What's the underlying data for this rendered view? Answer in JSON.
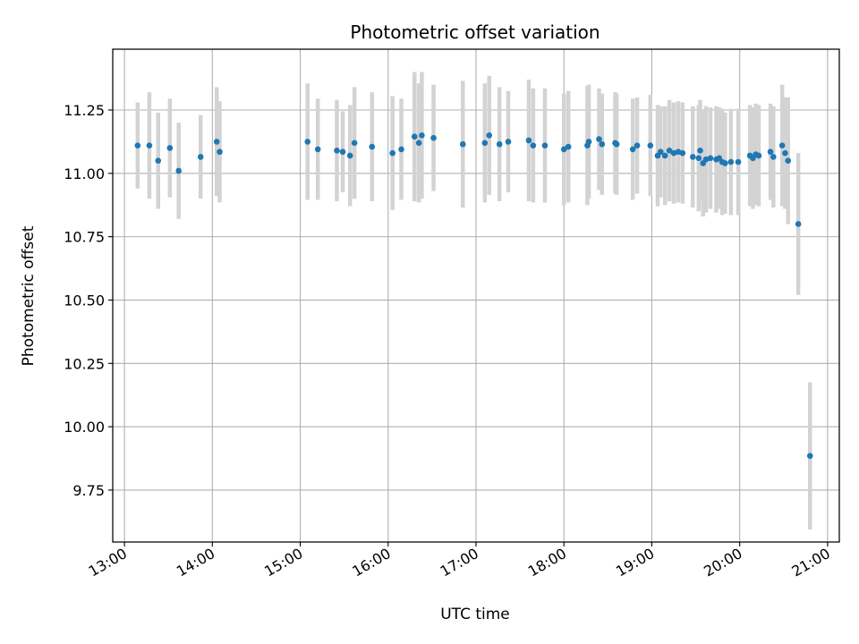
{
  "chart_data": {
    "type": "scatter",
    "title": "Photometric offset variation",
    "xlabel": "UTC time",
    "ylabel": "Photometric offset",
    "x_ticks": [
      "13:00",
      "14:00",
      "15:00",
      "16:00",
      "17:00",
      "18:00",
      "19:00",
      "20:00",
      "21:00"
    ],
    "y_ticks": [
      "9.75",
      "10.00",
      "10.25",
      "10.50",
      "10.75",
      "11.00",
      "11.25"
    ],
    "xlim": [
      "12:52",
      "21:08"
    ],
    "ylim": [
      9.545,
      11.49
    ],
    "grid": true,
    "colors": {
      "marker": "#1f77b4",
      "errorbar": "#d3d3d3",
      "grid": "#b0b0b0"
    },
    "series": [
      {
        "x": [
          "13:09",
          "13:17",
          "13:23",
          "13:31",
          "13:37",
          "13:52",
          "14:03",
          "14:05",
          "15:05",
          "15:12",
          "15:25",
          "15:29",
          "15:34",
          "15:37",
          "15:49",
          "16:03",
          "16:09",
          "16:18",
          "16:21",
          "16:23",
          "16:31",
          "16:51",
          "17:06",
          "17:09",
          "17:16",
          "17:22",
          "17:36",
          "17:39",
          "17:47",
          "18:00",
          "18:03",
          "18:16",
          "18:17",
          "18:24",
          "18:26",
          "18:35",
          "18:36",
          "18:47",
          "18:50",
          "18:59",
          "19:04",
          "19:06",
          "19:09",
          "19:12",
          "19:15",
          "19:18",
          "19:21",
          "19:28",
          "19:32",
          "19:33",
          "19:35",
          "19:37",
          "19:40",
          "19:44",
          "19:46",
          "19:48",
          "19:50",
          "19:54",
          "19:59",
          "20:07",
          "20:09",
          "20:11",
          "20:13",
          "20:21",
          "20:23",
          "20:29",
          "20:31",
          "20:33",
          "20:40",
          "20:48"
        ],
        "y": [
          11.11,
          11.11,
          11.05,
          11.1,
          11.01,
          11.065,
          11.125,
          11.085,
          11.125,
          11.095,
          11.09,
          11.085,
          11.07,
          11.12,
          11.105,
          11.08,
          11.095,
          11.145,
          11.12,
          11.15,
          11.14,
          11.115,
          11.12,
          11.15,
          11.115,
          11.125,
          11.13,
          11.11,
          11.11,
          11.095,
          11.105,
          11.11,
          11.125,
          11.135,
          11.115,
          11.12,
          11.115,
          11.095,
          11.11,
          11.11,
          11.07,
          11.085,
          11.07,
          11.09,
          11.08,
          11.085,
          11.08,
          11.065,
          11.06,
          11.09,
          11.04,
          11.055,
          11.06,
          11.055,
          11.06,
          11.045,
          11.04,
          11.045,
          11.045,
          11.07,
          11.06,
          11.075,
          11.07,
          11.085,
          11.065,
          11.11,
          11.08,
          11.05,
          10.8,
          9.885
        ],
        "err": [
          0.17,
          0.21,
          0.19,
          0.195,
          0.19,
          0.165,
          0.215,
          0.2,
          0.23,
          0.2,
          0.2,
          0.16,
          0.2,
          0.22,
          0.215,
          0.225,
          0.2,
          0.255,
          0.235,
          0.25,
          0.21,
          0.25,
          0.235,
          0.235,
          0.225,
          0.2,
          0.24,
          0.225,
          0.225,
          0.22,
          0.22,
          0.235,
          0.225,
          0.2,
          0.2,
          0.2,
          0.2,
          0.2,
          0.19,
          0.2,
          0.2,
          0.18,
          0.195,
          0.2,
          0.2,
          0.2,
          0.2,
          0.2,
          0.21,
          0.2,
          0.21,
          0.21,
          0.2,
          0.21,
          0.2,
          0.21,
          0.2,
          0.21,
          0.21,
          0.2,
          0.2,
          0.2,
          0.2,
          0.19,
          0.2,
          0.24,
          0.22,
          0.25,
          0.28,
          0.29
        ]
      }
    ]
  }
}
